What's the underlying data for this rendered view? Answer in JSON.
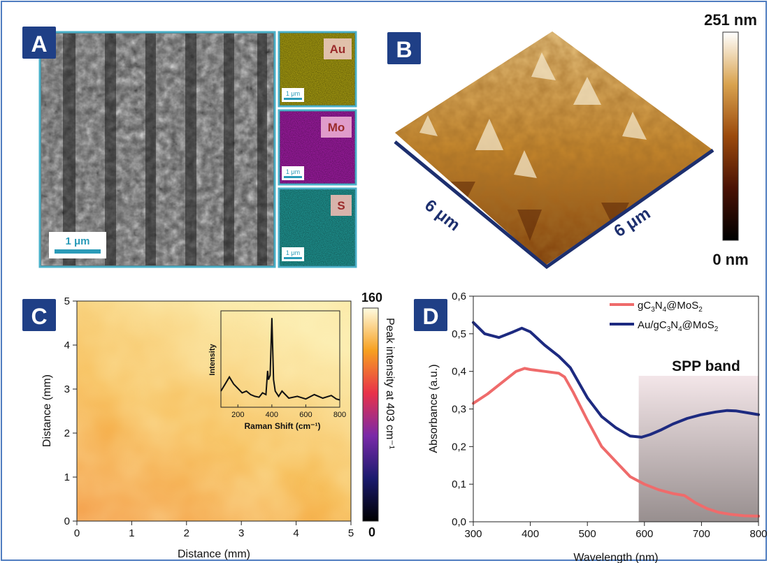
{
  "panels": {
    "a": {
      "label": "A",
      "sem_scale": "1 μm",
      "eds": [
        {
          "element": "Au",
          "scale": "1 μm",
          "color": "#b9ad12"
        },
        {
          "element": "Mo",
          "scale": "1 μm",
          "color": "#b01fb4"
        },
        {
          "element": "S",
          "scale": "1 μm",
          "color": "#23a7a4"
        }
      ]
    },
    "b": {
      "label": "B",
      "colorbar_max": "251 nm",
      "colorbar_min": "0 nm",
      "axis_left": "6 μm",
      "axis_right": "6 μm"
    },
    "c": {
      "label": "C",
      "colorbar_max": "160",
      "colorbar_min": "0",
      "colorbar_title": "Peak intensity at 403 cm⁻¹"
    },
    "d": {
      "label": "D",
      "annotation": "SPP band"
    }
  },
  "chart_data": [
    {
      "type": "heatmap",
      "panel": "C",
      "xlabel": "Distance (mm)",
      "ylabel": "Distance (mm)",
      "xlim": [
        0,
        5
      ],
      "ylim": [
        0,
        5
      ],
      "xticks": [
        "0",
        "1",
        "2",
        "3",
        "4",
        "5"
      ],
      "yticks": [
        "0",
        "1",
        "2",
        "3",
        "4",
        "5"
      ],
      "colorbar_range": [
        0,
        160
      ],
      "inset": {
        "type": "line",
        "xlabel": "Raman Shift (cm⁻¹)",
        "ylabel": "Intensity",
        "xlim": [
          100,
          800
        ],
        "xticks": [
          "200",
          "400",
          "600",
          "800"
        ],
        "x": [
          100,
          125,
          150,
          175,
          200,
          225,
          250,
          275,
          300,
          325,
          345,
          365,
          375,
          380,
          390,
          400,
          405,
          410,
          420,
          440,
          460,
          500,
          550,
          600,
          650,
          700,
          750,
          780,
          800
        ],
        "y": [
          0.12,
          0.2,
          0.28,
          0.2,
          0.15,
          0.1,
          0.12,
          0.08,
          0.06,
          0.05,
          0.1,
          0.08,
          0.35,
          0.25,
          0.3,
          0.95,
          0.6,
          0.25,
          0.12,
          0.06,
          0.12,
          0.04,
          0.06,
          0.03,
          0.08,
          0.04,
          0.07,
          0.03,
          0.02
        ]
      }
    },
    {
      "type": "line",
      "panel": "D",
      "xlabel": "Wavelength (nm)",
      "ylabel": "Absorbance (a.u.)",
      "xlim": [
        300,
        800
      ],
      "ylim": [
        0.0,
        0.6
      ],
      "xticks": [
        "300",
        "400",
        "500",
        "600",
        "700",
        "800"
      ],
      "yticks": [
        "0,0",
        "0,1",
        "0,2",
        "0,3",
        "0,4",
        "0,5",
        "0,6"
      ],
      "shaded_region": [
        590,
        800
      ],
      "series": [
        {
          "name": "gC3N4@MoS2",
          "color": "#ef6b6b",
          "x": [
            300,
            325,
            350,
            375,
            390,
            400,
            425,
            450,
            460,
            475,
            500,
            525,
            550,
            575,
            600,
            625,
            650,
            670,
            690,
            710,
            730,
            750,
            775,
            800
          ],
          "y": [
            0.315,
            0.34,
            0.37,
            0.4,
            0.408,
            0.405,
            0.4,
            0.395,
            0.385,
            0.345,
            0.27,
            0.2,
            0.16,
            0.12,
            0.1,
            0.085,
            0.075,
            0.07,
            0.05,
            0.035,
            0.025,
            0.02,
            0.016,
            0.015
          ]
        },
        {
          "name": "Au/gC3N4@MoS2",
          "color": "#1d2a80",
          "x": [
            300,
            320,
            345,
            370,
            385,
            400,
            425,
            450,
            470,
            500,
            525,
            550,
            575,
            595,
            610,
            630,
            650,
            675,
            700,
            725,
            745,
            760,
            780,
            800
          ],
          "y": [
            0.53,
            0.5,
            0.49,
            0.505,
            0.515,
            0.505,
            0.47,
            0.44,
            0.41,
            0.33,
            0.28,
            0.25,
            0.228,
            0.225,
            0.232,
            0.245,
            0.26,
            0.275,
            0.285,
            0.292,
            0.296,
            0.295,
            0.29,
            0.285
          ]
        }
      ]
    }
  ]
}
